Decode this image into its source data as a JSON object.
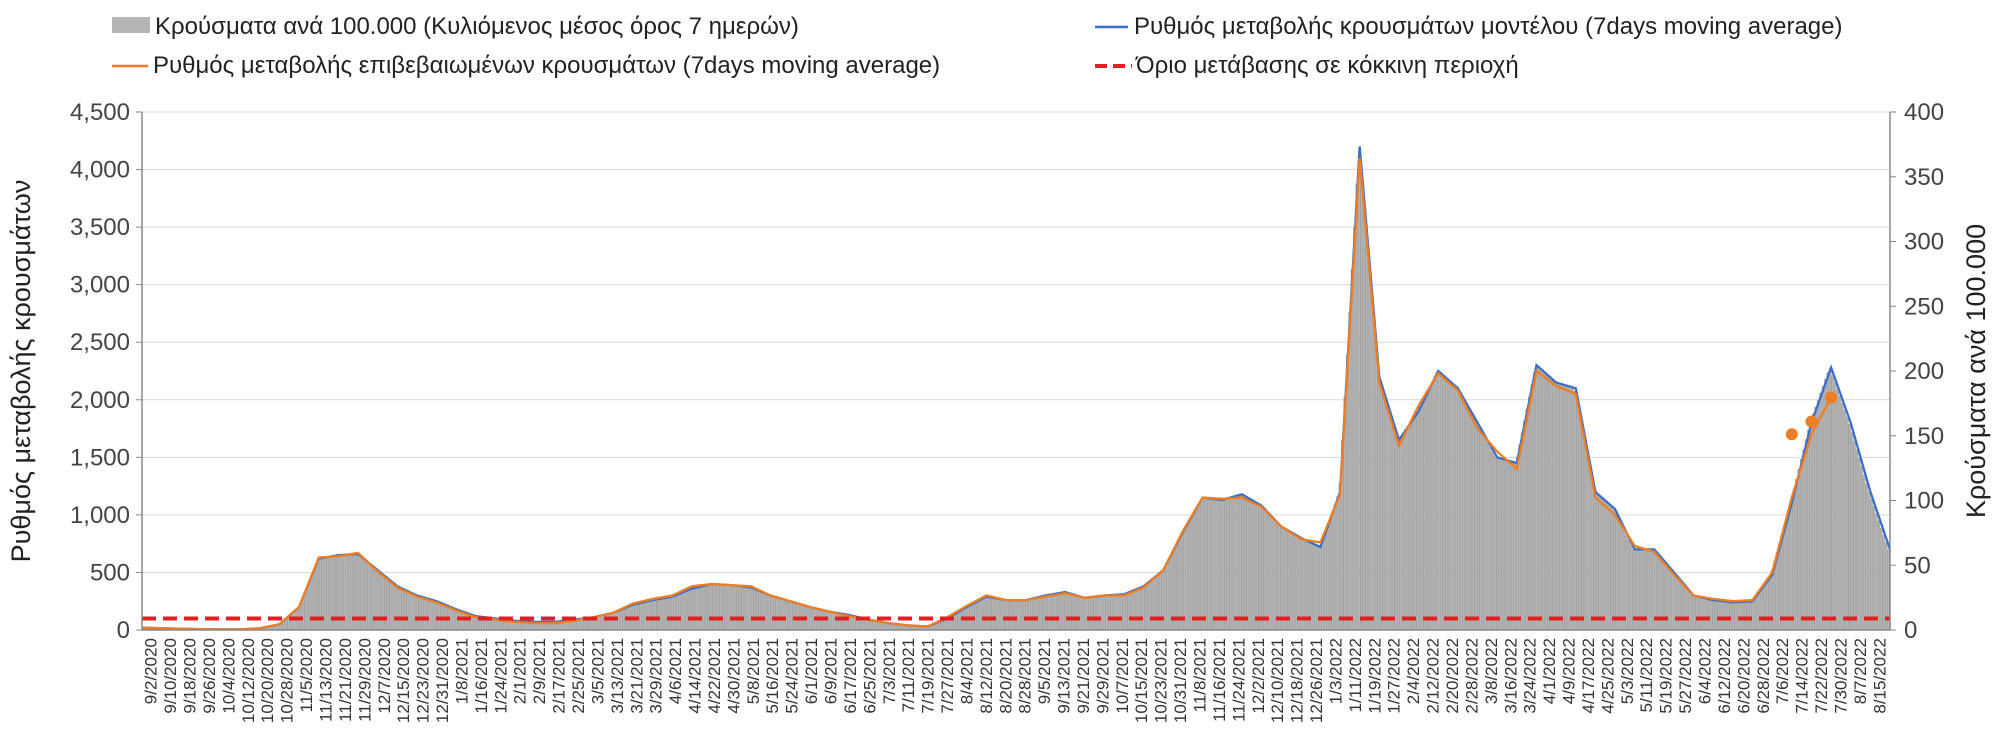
{
  "chart_data": {
    "type": "bar+line",
    "legend": {
      "bars": "Κρούσματα ανά 100.000 (Κυλιόμενος μέσος όρος 7 ημερών)",
      "model": "Ρυθμός μεταβολής κρουσμάτων μοντέλου (7days moving average)",
      "confirmed": "Ρυθμός μεταβολής επιβεβαιωμένων κρουσμάτων (7days moving average)",
      "threshold": "Όριο μετάβασης σε κόκκινη περιοχή"
    },
    "ylabel_left": "Ρυθμός μεταβολής κρουσμάτων",
    "ylabel_right": "Κρούσματα ανά 100.000",
    "y_left": {
      "min": 0,
      "max": 4500,
      "ticks": [
        "0",
        "500",
        "1,000",
        "1,500",
        "2,000",
        "2,500",
        "3,000",
        "3,500",
        "4,000",
        "4,500"
      ]
    },
    "y_right": {
      "min": 0,
      "max": 400,
      "ticks": [
        "0",
        "50",
        "100",
        "150",
        "200",
        "250",
        "300",
        "350",
        "400"
      ]
    },
    "x_labels": [
      "9/2/2020",
      "9/10/2020",
      "9/18/2020",
      "9/26/2020",
      "10/4/2020",
      "10/12/2020",
      "10/20/2020",
      "10/28/2020",
      "11/5/2020",
      "11/13/2020",
      "11/21/2020",
      "11/29/2020",
      "12/7/2020",
      "12/15/2020",
      "12/23/2020",
      "12/31/2020",
      "1/8/2021",
      "1/16/2021",
      "1/24/2021",
      "2/1/2021",
      "2/9/2021",
      "2/17/2021",
      "2/25/2021",
      "3/5/2021",
      "3/13/2021",
      "3/21/2021",
      "3/29/2021",
      "4/6/2021",
      "4/14/2021",
      "4/22/2021",
      "4/30/2021",
      "5/8/2021",
      "5/16/2021",
      "5/24/2021",
      "6/1/2021",
      "6/9/2021",
      "6/17/2021",
      "6/25/2021",
      "7/3/2021",
      "7/11/2021",
      "7/19/2021",
      "7/27/2021",
      "8/4/2021",
      "8/12/2021",
      "8/20/2021",
      "8/28/2021",
      "9/5/2021",
      "9/13/2021",
      "9/21/2021",
      "9/29/2021",
      "10/7/2021",
      "10/15/2021",
      "10/23/2021",
      "10/31/2021",
      "11/8/2021",
      "11/16/2021",
      "11/24/2021",
      "12/2/2021",
      "12/10/2021",
      "12/18/2021",
      "12/26/2021",
      "1/3/2022",
      "1/11/2022",
      "1/19/2022",
      "1/27/2022",
      "2/4/2022",
      "2/12/2022",
      "2/20/2022",
      "2/28/2022",
      "3/8/2022",
      "3/16/2022",
      "3/24/2022",
      "4/1/2022",
      "4/9/2022",
      "4/17/2022",
      "4/25/2022",
      "5/3/2022",
      "5/11/2022",
      "5/19/2022",
      "5/27/2022",
      "6/4/2022",
      "6/12/2022",
      "6/20/2022",
      "6/28/2022",
      "7/6/2022",
      "7/14/2022",
      "7/22/2022",
      "7/30/2022",
      "8/7/2022",
      "8/15/2022"
    ],
    "x_labels_shown": [
      "9/2/2020",
      "9/10/2020",
      "9/18/2020",
      "9/26/2020",
      "10/4/2020",
      "10/12/2020",
      "10/20/2020",
      "10/28/2020",
      "11/5/2020",
      "11/13/2020",
      "11/21/2020",
      "11/29/2020",
      "12/7/2020",
      "12/15/2020",
      "12/23/2020",
      "12/31/2020",
      "1/8/2021",
      "1/16/2021",
      "1/24/2021",
      "2/1/2021",
      "2/9/2021",
      "2/17/2021",
      "2/25/2021",
      "3/5/2021",
      "3/13/2021",
      "3/21/2021",
      "3/29/2021",
      "4/6/2021",
      "4/14/2021",
      "4/22/2021",
      "4/30/2021",
      "5/8/2021",
      "5/16/2021",
      "5/24/2021",
      "6/1/2021",
      "6/9/2021",
      "6/17/2021",
      "6/25/2021",
      "7/3/2021",
      "7/11/2021",
      "7/19/2021",
      "7/27/2021",
      "8/4/2021",
      "8/12/2021",
      "8/20/2021",
      "8/28/2021",
      "9/5/2021",
      "9/13/2021",
      "9/21/2021",
      "9/29/2021",
      "10/7/2021",
      "10/15/2021",
      "10/23/2021",
      "10/31/2021",
      "11/8/2021",
      "11/16/2021",
      "11/24/2021",
      "12/2/2021",
      "12/10/2021",
      "12/18/2021",
      "12/26/2021",
      "1/3/2022",
      "1/11/2022",
      "1/19/2022",
      "1/27/2022",
      "2/4/2022",
      "2/12/2022",
      "2/20/2022",
      "2/28/2022",
      "3/8/2022",
      "3/16/2022",
      "3/24/2022",
      "4/1/2022",
      "4/9/2022",
      "4/17/2022",
      "4/25/2022",
      "5/3/2022",
      "5/11/2022",
      "5/19/2022",
      "5/27/2022",
      "6/4/2022",
      "6/12/2022",
      "6/20/2022",
      "6/28/2022",
      "7/6/2022",
      "7/14/2022",
      "7/22/2022",
      "7/30/2022",
      "8/7/2022",
      "8/15/2022"
    ],
    "series_left_axis_units": "rate (left axis)",
    "model_rate": [
      20,
      15,
      10,
      8,
      5,
      5,
      15,
      50,
      200,
      620,
      650,
      660,
      520,
      380,
      300,
      250,
      180,
      120,
      100,
      80,
      70,
      70,
      90,
      110,
      150,
      220,
      260,
      290,
      360,
      400,
      390,
      370,
      300,
      250,
      200,
      160,
      130,
      90,
      60,
      40,
      30,
      100,
      200,
      290,
      260,
      260,
      300,
      330,
      280,
      300,
      310,
      380,
      520,
      850,
      1150,
      1130,
      1180,
      1080,
      900,
      800,
      720,
      1200,
      4200,
      2200,
      1650,
      1900,
      2250,
      2100,
      1800,
      1500,
      1450,
      2300,
      2150,
      2100,
      1200,
      1050,
      700,
      700,
      500,
      300,
      260,
      240,
      250,
      480,
      1100,
      1800,
      2280,
      1800,
      1200,
      700
    ],
    "confirmed_rate": [
      20,
      15,
      10,
      8,
      5,
      5,
      15,
      50,
      200,
      630,
      640,
      670,
      510,
      370,
      290,
      240,
      170,
      110,
      90,
      70,
      60,
      60,
      80,
      110,
      150,
      230,
      270,
      300,
      380,
      400,
      390,
      380,
      300,
      250,
      200,
      160,
      120,
      90,
      60,
      40,
      30,
      110,
      210,
      300,
      260,
      260,
      290,
      320,
      280,
      300,
      300,
      370,
      520,
      860,
      1150,
      1140,
      1150,
      1070,
      900,
      790,
      760,
      1180,
      4100,
      2150,
      1600,
      1950,
      2230,
      2080,
      1750,
      1550,
      1400,
      2250,
      2120,
      2050,
      1150,
      1000,
      730,
      680,
      480,
      300,
      270,
      250,
      260,
      500,
      1150,
      1700,
      2020
    ],
    "confirmed_points": [
      1700,
      1810,
      2020
    ],
    "cases_per_100k": [
      2,
      1.5,
      1,
      0.8,
      0.5,
      0.5,
      1.5,
      4.5,
      18,
      55,
      58,
      59,
      46,
      34,
      27,
      22,
      16,
      11,
      9,
      7,
      6,
      6,
      8,
      10,
      13,
      20,
      23,
      26,
      32,
      36,
      35,
      33,
      27,
      22,
      18,
      14,
      12,
      8,
      5,
      3.5,
      3,
      9,
      18,
      26,
      23,
      23,
      27,
      29,
      25,
      27,
      28,
      34,
      46,
      76,
      102,
      100,
      105,
      96,
      80,
      71,
      64,
      107,
      373,
      196,
      147,
      169,
      200,
      187,
      160,
      133,
      129,
      204,
      191,
      187,
      107,
      93,
      62,
      62,
      44,
      27,
      23,
      21,
      22,
      43,
      98,
      160,
      203,
      160,
      107,
      62
    ],
    "threshold_left": 100,
    "threshold_right_label": "≈10",
    "colors": {
      "bars": "#b5b5b5",
      "model": "#3a6fc9",
      "confirmed": "#ef7d22",
      "threshold": "#e02020"
    }
  }
}
